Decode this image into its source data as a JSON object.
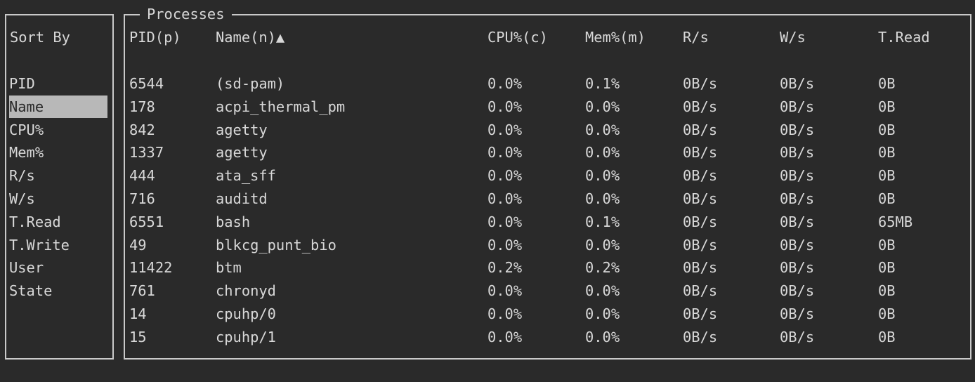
{
  "sort_panel": {
    "title": "Sort By",
    "items": [
      "PID",
      "Name",
      "CPU%",
      "Mem%",
      "R/s",
      "W/s",
      "T.Read",
      "T.Write",
      "User",
      "State"
    ],
    "selected": "Name"
  },
  "processes": {
    "title": "Processes",
    "columns": [
      "PID(p)",
      "Name(n)▲",
      "CPU%(c)",
      "Mem%(m)",
      "R/s",
      "W/s",
      "T.Read"
    ],
    "rows": [
      [
        "6544",
        "(sd-pam)",
        "0.0%",
        "0.1%",
        "0B/s",
        "0B/s",
        "0B"
      ],
      [
        "178",
        "acpi_thermal_pm",
        "0.0%",
        "0.0%",
        "0B/s",
        "0B/s",
        "0B"
      ],
      [
        "842",
        "agetty",
        "0.0%",
        "0.0%",
        "0B/s",
        "0B/s",
        "0B"
      ],
      [
        "1337",
        "agetty",
        "0.0%",
        "0.0%",
        "0B/s",
        "0B/s",
        "0B"
      ],
      [
        "444",
        "ata_sff",
        "0.0%",
        "0.0%",
        "0B/s",
        "0B/s",
        "0B"
      ],
      [
        "716",
        "auditd",
        "0.0%",
        "0.0%",
        "0B/s",
        "0B/s",
        "0B"
      ],
      [
        "6551",
        "bash",
        "0.0%",
        "0.1%",
        "0B/s",
        "0B/s",
        "65MB"
      ],
      [
        "49",
        "blkcg_punt_bio",
        "0.0%",
        "0.0%",
        "0B/s",
        "0B/s",
        "0B"
      ],
      [
        "11422",
        "btm",
        "0.2%",
        "0.2%",
        "0B/s",
        "0B/s",
        "0B"
      ],
      [
        "761",
        "chronyd",
        "0.0%",
        "0.0%",
        "0B/s",
        "0B/s",
        "0B"
      ],
      [
        "14",
        "cpuhp/0",
        "0.0%",
        "0.0%",
        "0B/s",
        "0B/s",
        "0B"
      ],
      [
        "15",
        "cpuhp/1",
        "0.0%",
        "0.0%",
        "0B/s",
        "0B/s",
        "0B"
      ]
    ]
  }
}
